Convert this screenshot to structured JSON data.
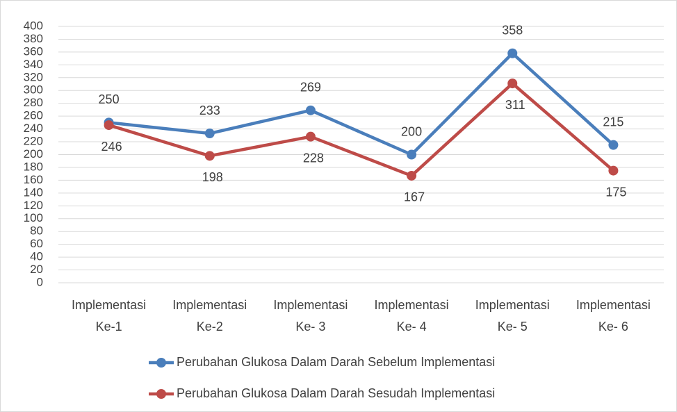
{
  "chart_data": {
    "type": "line",
    "categories": [
      "Implementasi Ke-1",
      "Implementasi Ke-2",
      "Implementasi Ke- 3",
      "Implementasi Ke- 4",
      "Implementasi Ke- 5",
      "Implementasi Ke- 6"
    ],
    "series": [
      {
        "name": "Perubahan Glukosa Dalam Darah Sebelum Implementasi",
        "color": "#4a7ebb",
        "values": [
          250,
          233,
          269,
          200,
          358,
          215
        ]
      },
      {
        "name": "Perubahan Glukosa Dalam Darah Sesudah Implementasi",
        "color": "#be4b48",
        "values": [
          246,
          198,
          228,
          167,
          311,
          175
        ]
      }
    ],
    "ylim": [
      0,
      400
    ],
    "yticks": [
      0,
      20,
      40,
      60,
      80,
      100,
      120,
      140,
      160,
      180,
      200,
      220,
      240,
      260,
      280,
      300,
      320,
      340,
      360,
      380,
      400
    ],
    "grid": true,
    "legend": "bottom"
  }
}
